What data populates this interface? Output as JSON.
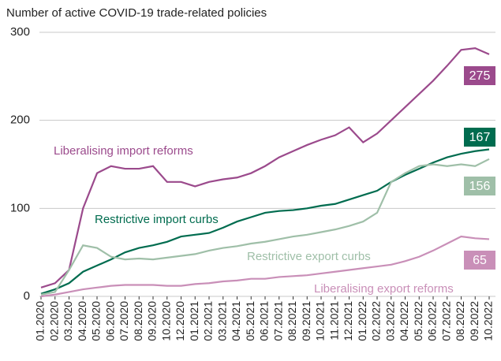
{
  "chart_data": {
    "type": "line",
    "title": "Number of active COVID-19 trade-related policies",
    "categories": [
      "01.2020",
      "02.2020",
      "03.2020",
      "04.2020",
      "05.2020",
      "06.2020",
      "07.2020",
      "08.2020",
      "09.2020",
      "10.2020",
      "12.2020",
      "01.2021",
      "02.2021",
      "03.2021",
      "04.2021",
      "05.2021",
      "06.2021",
      "07.2021",
      "08.2021",
      "09.2021",
      "10.2021",
      "11.2021",
      "12.2021",
      "01.2022",
      "02.2022",
      "03.2022",
      "04.2022",
      "05.2022",
      "06.2022",
      "07.2022",
      "08.2022",
      "09.2022",
      "10.2022"
    ],
    "series": [
      {
        "name": "Liberalising import reforms",
        "color": "#9b4a8c",
        "values": [
          10,
          15,
          30,
          100,
          140,
          148,
          145,
          145,
          148,
          130,
          130,
          125,
          130,
          133,
          135,
          140,
          148,
          158,
          165,
          172,
          178,
          183,
          192,
          175,
          185,
          200,
          215,
          230,
          245,
          262,
          280,
          282,
          275
        ],
        "value_labels": [
          null,
          null,
          null,
          null,
          null,
          null,
          null,
          null,
          null,
          null,
          null,
          null,
          null,
          null,
          null,
          null,
          null,
          null,
          null,
          null,
          null,
          null,
          null,
          null,
          null,
          null,
          null,
          null,
          null,
          null,
          null,
          null,
          "275"
        ]
      },
      {
        "name": "Restrictive import curbs",
        "color": "#006c4f",
        "values": [
          3,
          8,
          15,
          28,
          35,
          42,
          50,
          55,
          58,
          62,
          68,
          70,
          72,
          78,
          85,
          90,
          95,
          97,
          98,
          100,
          103,
          105,
          110,
          115,
          120,
          130,
          138,
          145,
          152,
          158,
          162,
          165,
          167
        ],
        "value_labels": [
          null,
          null,
          null,
          null,
          null,
          null,
          null,
          null,
          null,
          null,
          null,
          null,
          null,
          null,
          null,
          null,
          null,
          null,
          null,
          null,
          null,
          null,
          null,
          null,
          null,
          null,
          null,
          null,
          null,
          null,
          null,
          null,
          "167"
        ]
      },
      {
        "name": "Restrictive export curbs",
        "color": "#9fbfa8",
        "values": [
          2,
          5,
          30,
          58,
          55,
          45,
          42,
          43,
          42,
          44,
          46,
          48,
          52,
          55,
          57,
          60,
          62,
          65,
          68,
          70,
          73,
          76,
          80,
          85,
          95,
          130,
          140,
          148,
          150,
          148,
          150,
          148,
          156
        ],
        "value_labels": [
          null,
          null,
          null,
          null,
          null,
          null,
          null,
          null,
          null,
          null,
          null,
          null,
          null,
          null,
          null,
          null,
          null,
          null,
          null,
          null,
          null,
          null,
          null,
          null,
          null,
          null,
          null,
          null,
          null,
          null,
          null,
          null,
          "156"
        ]
      },
      {
        "name": "Liberalising export reforms",
        "color": "#c98fb8",
        "values": [
          0,
          2,
          5,
          8,
          10,
          12,
          13,
          13,
          13,
          12,
          12,
          14,
          15,
          17,
          18,
          20,
          20,
          22,
          23,
          24,
          26,
          28,
          30,
          32,
          34,
          36,
          40,
          45,
          52,
          60,
          68,
          66,
          65
        ],
        "value_labels": [
          null,
          null,
          null,
          null,
          null,
          null,
          null,
          null,
          null,
          null,
          null,
          null,
          null,
          null,
          null,
          null,
          null,
          null,
          null,
          null,
          null,
          null,
          null,
          null,
          null,
          null,
          null,
          null,
          null,
          null,
          null,
          null,
          "65"
        ]
      }
    ],
    "ylim": [
      0,
      300
    ],
    "yticks": [
      0,
      100,
      200,
      300
    ],
    "grid": true
  }
}
